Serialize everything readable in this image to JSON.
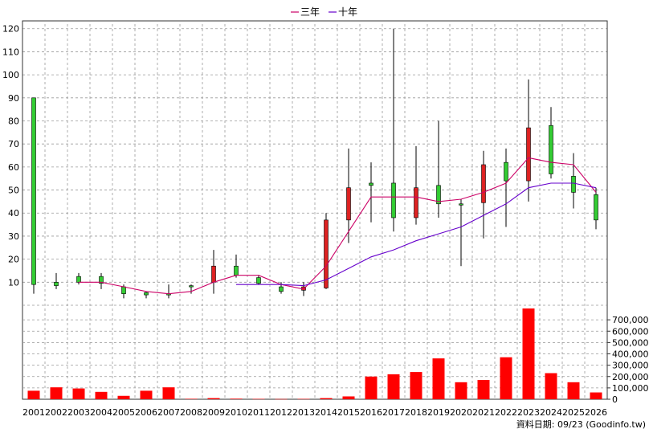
{
  "legend": {
    "items": [
      {
        "label": "三年",
        "color": "#cc0066"
      },
      {
        "label": "十年",
        "color": "#6600cc"
      }
    ]
  },
  "source_note": "資料日期: 09/23  (Goodinfo.tw)",
  "chart_data": [
    {
      "type": "candlestick",
      "title": "",
      "categories": [
        "2001",
        "2002",
        "2003",
        "2004",
        "2005",
        "2006",
        "2007",
        "2008",
        "2009",
        "2010",
        "2011",
        "2012",
        "2013",
        "2014",
        "2015",
        "2016",
        "2017",
        "2018",
        "2019",
        "2020",
        "2021",
        "2022",
        "2023",
        "2024",
        "2025",
        "2026"
      ],
      "ylim": [
        0,
        122
      ],
      "y_ticks": [
        10,
        20,
        30,
        40,
        50,
        60,
        70,
        80,
        90,
        100,
        110,
        120
      ],
      "grid": true,
      "up_color": "#33cc33",
      "down_color": "#dd2222",
      "candles": [
        {
          "year": "2001",
          "open": 90,
          "close": 9,
          "high": 90,
          "low": 5
        },
        {
          "year": "2002",
          "open": 10,
          "close": 8.5,
          "high": 14,
          "low": 7
        },
        {
          "year": "2003",
          "open": 12.5,
          "close": 10,
          "high": 14,
          "low": 9
        },
        {
          "year": "2004",
          "open": 12.5,
          "close": 9.5,
          "high": 14,
          "low": 7
        },
        {
          "year": "2005",
          "open": 8,
          "close": 5,
          "high": 9,
          "low": 3
        },
        {
          "year": "2006",
          "open": 5.5,
          "close": 4.5,
          "high": 6,
          "low": 3
        },
        {
          "year": "2007",
          "open": 5,
          "close": 4.5,
          "high": 9,
          "low": 3
        },
        {
          "year": "2008",
          "open": 8.5,
          "close": 8,
          "high": 9,
          "low": 5
        },
        {
          "year": "2009",
          "open": 10,
          "close": 17,
          "high": 24,
          "low": 5
        },
        {
          "year": "2010",
          "open": 17,
          "close": 13,
          "high": 22,
          "low": 12
        },
        {
          "year": "2011",
          "open": 12,
          "close": 9.5,
          "high": 13,
          "low": 9
        },
        {
          "year": "2012",
          "open": 8,
          "close": 6,
          "high": 10,
          "low": 5
        },
        {
          "year": "2013",
          "open": 6.5,
          "close": 8,
          "high": 10,
          "low": 4
        },
        {
          "year": "2014",
          "open": 7.5,
          "close": 37,
          "high": 40,
          "low": 7
        },
        {
          "year": "2015",
          "open": 37,
          "close": 51,
          "high": 68,
          "low": 27
        },
        {
          "year": "2016",
          "open": 53,
          "close": 52,
          "high": 62,
          "low": 36
        },
        {
          "year": "2017",
          "open": 53,
          "close": 38,
          "high": 120,
          "low": 32
        },
        {
          "year": "2018",
          "open": 38,
          "close": 51,
          "high": 69,
          "low": 35
        },
        {
          "year": "2019",
          "open": 52,
          "close": 44,
          "high": 80,
          "low": 38
        },
        {
          "year": "2020",
          "open": 44,
          "close": 43.5,
          "high": 46,
          "low": 17
        },
        {
          "year": "2021",
          "open": 44.5,
          "close": 61,
          "high": 67,
          "low": 29
        },
        {
          "year": "2022",
          "open": 62,
          "close": 54,
          "high": 68,
          "low": 34
        },
        {
          "year": "2023",
          "open": 54,
          "close": 77,
          "high": 98,
          "low": 45
        },
        {
          "year": "2024",
          "open": 78,
          "close": 57,
          "high": 86,
          "low": 55
        },
        {
          "year": "2025",
          "open": 56,
          "close": 49,
          "high": 66,
          "low": 42
        },
        {
          "year": "2026",
          "open": 48,
          "close": 37,
          "high": 51,
          "low": 33
        }
      ],
      "series": [
        {
          "name": "三年",
          "color": "#cc0066",
          "values": [
            null,
            null,
            10,
            10,
            8,
            6,
            5,
            6,
            10,
            13,
            13,
            9,
            7,
            17,
            32,
            47,
            47,
            47,
            45,
            46,
            49,
            53,
            64,
            62,
            61,
            49
          ]
        },
        {
          "name": "十年",
          "color": "#6600cc",
          "values": [
            null,
            null,
            null,
            null,
            null,
            null,
            null,
            null,
            null,
            9,
            9,
            9,
            8.5,
            11,
            16,
            21,
            24,
            28,
            31,
            34,
            39,
            44,
            51,
            53,
            53,
            51
          ]
        }
      ]
    },
    {
      "type": "bar",
      "title": "",
      "categories": [
        "2001",
        "2002",
        "2003",
        "2004",
        "2005",
        "2006",
        "2007",
        "2008",
        "2009",
        "2010",
        "2011",
        "2012",
        "2013",
        "2014",
        "2015",
        "2016",
        "2017",
        "2018",
        "2019",
        "2020",
        "2021",
        "2022",
        "2023",
        "2024",
        "2025",
        "2026"
      ],
      "values": [
        75000,
        105000,
        95000,
        65000,
        30000,
        75000,
        105000,
        4000,
        10000,
        5000,
        3000,
        2000,
        3000,
        10000,
        25000,
        200000,
        220000,
        240000,
        360000,
        150000,
        170000,
        370000,
        800000,
        230000,
        150000,
        60000
      ],
      "ylim": [
        0,
        800000
      ],
      "y_tick_labels": [
        "0",
        "100,000",
        "200,000",
        "300,000",
        "400,000",
        "500,000",
        "600,000",
        "700,000"
      ],
      "bar_color": "#ff0000",
      "grid": true
    }
  ]
}
